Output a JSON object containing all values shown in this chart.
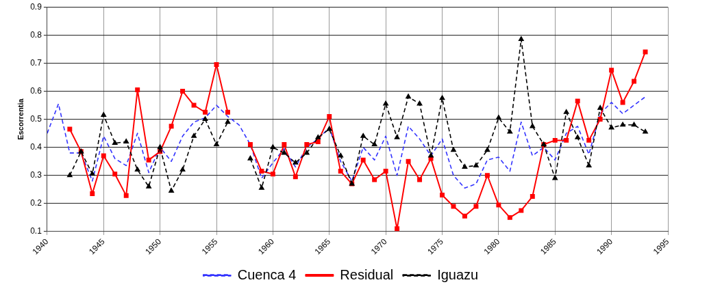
{
  "chart_data": {
    "type": "line",
    "ylabel": "Escorrentia",
    "x": [
      1940,
      1941,
      1942,
      1943,
      1944,
      1945,
      1946,
      1947,
      1948,
      1949,
      1950,
      1951,
      1952,
      1953,
      1954,
      1955,
      1956,
      1957,
      1958,
      1959,
      1960,
      1961,
      1962,
      1963,
      1964,
      1965,
      1966,
      1967,
      1968,
      1969,
      1970,
      1971,
      1972,
      1973,
      1974,
      1975,
      1976,
      1977,
      1978,
      1979,
      1980,
      1981,
      1982,
      1983,
      1984,
      1985,
      1986,
      1987,
      1988,
      1989,
      1990,
      1991,
      1992,
      1993
    ],
    "series": [
      {
        "name": "Cuenca 4",
        "color": "#3333ff",
        "marker": "none",
        "line_style": "dashed",
        "values": [
          0.45,
          0.555,
          0.38,
          0.38,
          0.28,
          0.44,
          0.36,
          0.335,
          0.45,
          0.31,
          0.4,
          0.35,
          0.44,
          0.49,
          0.505,
          0.55,
          0.51,
          0.48,
          0.41,
          0.29,
          0.345,
          0.395,
          0.33,
          0.4,
          0.43,
          0.47,
          0.35,
          0.28,
          0.4,
          0.355,
          0.44,
          0.3,
          0.475,
          0.43,
          0.37,
          0.43,
          0.3,
          0.255,
          0.27,
          0.355,
          0.365,
          0.315,
          0.49,
          0.37,
          0.4,
          0.355,
          0.45,
          0.475,
          0.375,
          0.52,
          0.56,
          0.52,
          0.55,
          0.58
        ]
      },
      {
        "name": "Residual",
        "color": "#ff0000",
        "marker": "square",
        "line_style": "solid",
        "values": [
          null,
          null,
          0.465,
          0.385,
          0.235,
          0.37,
          0.305,
          0.228,
          0.605,
          0.355,
          0.385,
          0.475,
          0.6,
          0.55,
          0.525,
          0.695,
          0.525,
          null,
          0.41,
          0.315,
          0.305,
          0.41,
          0.295,
          0.41,
          0.42,
          0.51,
          0.315,
          0.27,
          0.355,
          0.285,
          0.315,
          0.11,
          0.35,
          0.285,
          0.36,
          0.23,
          0.19,
          0.155,
          0.19,
          0.3,
          0.195,
          0.15,
          0.175,
          0.225,
          0.41,
          0.425,
          0.425,
          0.565,
          0.425,
          0.5,
          0.675,
          0.56,
          0.635,
          0.74
        ]
      },
      {
        "name": "Iguazu",
        "color": "#000000",
        "marker": "triangle",
        "line_style": "dashed",
        "values": [
          null,
          null,
          0.3,
          0.385,
          0.305,
          0.515,
          0.415,
          0.42,
          0.32,
          0.26,
          0.4,
          0.245,
          0.32,
          0.44,
          0.5,
          0.41,
          0.49,
          null,
          0.36,
          0.255,
          0.4,
          0.38,
          0.345,
          0.38,
          0.435,
          0.465,
          0.37,
          0.27,
          0.44,
          0.41,
          0.555,
          0.435,
          0.58,
          0.555,
          0.37,
          0.575,
          0.39,
          0.33,
          0.335,
          0.39,
          0.505,
          0.455,
          0.785,
          0.475,
          0.41,
          0.29,
          0.525,
          0.435,
          0.335,
          0.54,
          0.47,
          0.48,
          0.48,
          0.455
        ]
      }
    ],
    "xlim": [
      1940,
      1995
    ],
    "xticks": [
      1940,
      1945,
      1950,
      1955,
      1960,
      1965,
      1970,
      1975,
      1980,
      1985,
      1990,
      1995
    ],
    "ylim": [
      0.1,
      0.9
    ],
    "yticks": [
      0.1,
      0.2,
      0.3,
      0.4,
      0.5,
      0.6,
      0.7,
      0.8,
      0.9
    ],
    "grid": true,
    "legend": "bottom"
  }
}
